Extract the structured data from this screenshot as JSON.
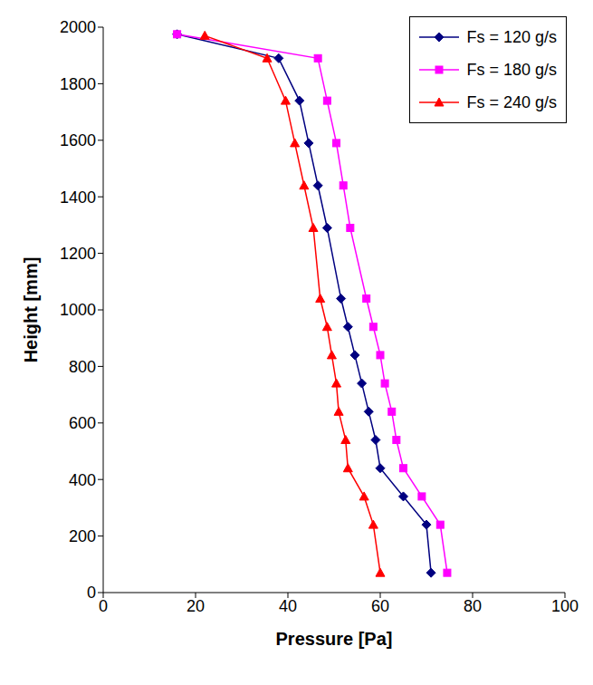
{
  "chart_data": {
    "type": "line",
    "x_label": "Pressure [Pa]",
    "y_label": "Height [mm]",
    "xlim": [
      0,
      100
    ],
    "xticks": [
      0,
      20,
      40,
      60,
      80,
      100
    ],
    "ylim": [
      0,
      2000
    ],
    "yticks": [
      0,
      200,
      400,
      600,
      800,
      1000,
      1200,
      1400,
      1600,
      1800,
      2000
    ],
    "grid": false,
    "legend": "upper right",
    "series": [
      {
        "name": "Fs = 120 g/s",
        "color": "#000080",
        "marker": "diamond",
        "x": [
          16,
          38,
          42.5,
          44.5,
          46.5,
          48.5,
          51.5,
          53,
          54.5,
          56,
          57.5,
          59,
          60,
          65,
          70,
          71
        ],
        "values": [
          1975,
          1890,
          1740,
          1590,
          1440,
          1290,
          1040,
          940,
          840,
          740,
          640,
          540,
          440,
          340,
          240,
          70
        ]
      },
      {
        "name": "Fs = 180 g/s",
        "color": "#ff00ff",
        "marker": "square",
        "x": [
          16,
          46.5,
          48.5,
          50.5,
          52,
          53.5,
          57,
          58.5,
          60,
          61,
          62.5,
          63.5,
          65,
          69,
          73,
          74.5
        ],
        "values": [
          1975,
          1890,
          1740,
          1590,
          1440,
          1290,
          1040,
          940,
          840,
          740,
          640,
          540,
          440,
          340,
          240,
          70
        ]
      },
      {
        "name": "Fs = 240 g/s",
        "color": "#ff0000",
        "marker": "triangle",
        "x": [
          22,
          35.5,
          39.5,
          41.5,
          43.5,
          45.5,
          47,
          48.5,
          49.5,
          50.5,
          51,
          52.5,
          53,
          56.5,
          58.5,
          60
        ],
        "values": [
          1970,
          1890,
          1740,
          1590,
          1440,
          1290,
          1040,
          940,
          840,
          740,
          640,
          540,
          440,
          340,
          240,
          70
        ]
      }
    ]
  }
}
